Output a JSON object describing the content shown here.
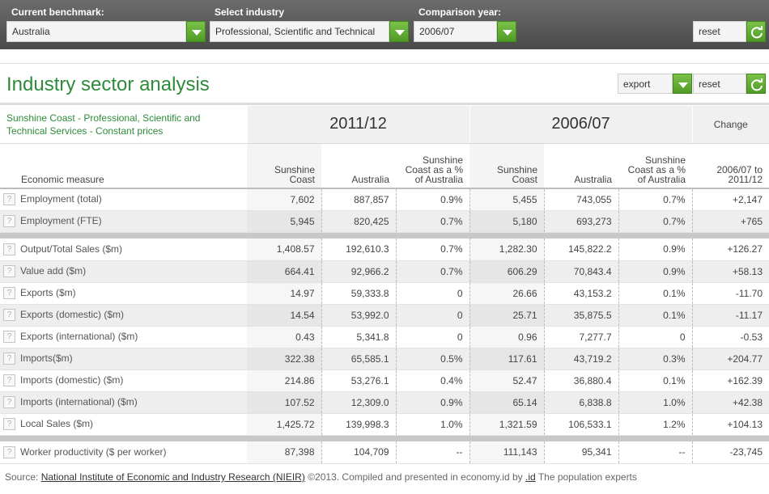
{
  "filters": {
    "benchmark_label": "Current benchmark:",
    "benchmark_value": "Australia",
    "industry_label": "Select industry",
    "industry_value": "Professional, Scientific and Technical",
    "year_label": "Comparison year:",
    "year_value": "2006/07",
    "reset_label": "reset"
  },
  "panel": {
    "title": "Industry sector analysis",
    "export_label": "export",
    "reset_label": "reset"
  },
  "table": {
    "subtitle": "Sunshine Coast - Professional, Scientific and Technical Services - Constant prices",
    "year_a": "2011/12",
    "year_b": "2006/07",
    "change_label": "Change",
    "columns": {
      "measure": "Economic measure",
      "sc": "Sunshine Coast",
      "aus": "Australia",
      "pct": "Sunshine Coast as a % of Australia",
      "change": "2006/07 to 2011/12"
    },
    "rows": [
      {
        "label": "Employment (total)",
        "sc_a": "7,602",
        "aus_a": "887,857",
        "pct_a": "0.9%",
        "sc_b": "5,455",
        "aus_b": "743,055",
        "pct_b": "0.7%",
        "change": "+2,147"
      },
      {
        "label": "Employment (FTE)",
        "sc_a": "5,945",
        "aus_a": "820,425",
        "pct_a": "0.7%",
        "sc_b": "5,180",
        "aus_b": "693,273",
        "pct_b": "0.7%",
        "change": "+765"
      },
      {
        "label": "Output/Total Sales ($m)",
        "sc_a": "1,408.57",
        "aus_a": "192,610.3",
        "pct_a": "0.7%",
        "sc_b": "1,282.30",
        "aus_b": "145,822.2",
        "pct_b": "0.9%",
        "change": "+126.27"
      },
      {
        "label": "Value add ($m)",
        "sc_a": "664.41",
        "aus_a": "92,966.2",
        "pct_a": "0.7%",
        "sc_b": "606.29",
        "aus_b": "70,843.4",
        "pct_b": "0.9%",
        "change": "+58.13"
      },
      {
        "label": "Exports ($m)",
        "sc_a": "14.97",
        "aus_a": "59,333.8",
        "pct_a": "0",
        "sc_b": "26.66",
        "aus_b": "43,153.2",
        "pct_b": "0.1%",
        "change": "-11.70"
      },
      {
        "label": "Exports (domestic) ($m)",
        "sc_a": "14.54",
        "aus_a": "53,992.0",
        "pct_a": "0",
        "sc_b": "25.71",
        "aus_b": "35,875.5",
        "pct_b": "0.1%",
        "change": "-11.17"
      },
      {
        "label": "Exports (international) ($m)",
        "sc_a": "0.43",
        "aus_a": "5,341.8",
        "pct_a": "0",
        "sc_b": "0.96",
        "aus_b": "7,277.7",
        "pct_b": "0",
        "change": "-0.53"
      },
      {
        "label": "Imports($m)",
        "sc_a": "322.38",
        "aus_a": "65,585.1",
        "pct_a": "0.5%",
        "sc_b": "117.61",
        "aus_b": "43,719.2",
        "pct_b": "0.3%",
        "change": "+204.77"
      },
      {
        "label": "Imports (domestic) ($m)",
        "sc_a": "214.86",
        "aus_a": "53,276.1",
        "pct_a": "0.4%",
        "sc_b": "52.47",
        "aus_b": "36,880.4",
        "pct_b": "0.1%",
        "change": "+162.39"
      },
      {
        "label": "Imports (international) ($m)",
        "sc_a": "107.52",
        "aus_a": "12,309.0",
        "pct_a": "0.9%",
        "sc_b": "65.14",
        "aus_b": "6,838.8",
        "pct_b": "1.0%",
        "change": "+42.38"
      },
      {
        "label": "Local Sales ($m)",
        "sc_a": "1,425.72",
        "aus_a": "139,998.3",
        "pct_a": "1.0%",
        "sc_b": "1,321.59",
        "aus_b": "106,533.1",
        "pct_b": "1.2%",
        "change": "+104.13"
      },
      {
        "label": "Worker productivity ($ per worker)",
        "sc_a": "87,398",
        "aus_a": "104,709",
        "pct_a": "--",
        "sc_b": "111,143",
        "aus_b": "95,341",
        "pct_b": "--",
        "change": "-23,745"
      }
    ]
  },
  "footer": {
    "prefix": "Source:",
    "source_link": "National Institute of Economic and Industry Research (NIEIR)",
    "middle": "©2013. Compiled and presented in economy.id by",
    "id_link": ".id",
    "suffix": "The population experts"
  },
  "icons": {
    "dropdown": "chevron-down-icon",
    "refresh": "refresh-icon",
    "help": "question-icon"
  },
  "colors": {
    "accent": "#2e8b3a",
    "button": "#5fae33",
    "topbar": "#5a5a5a"
  }
}
